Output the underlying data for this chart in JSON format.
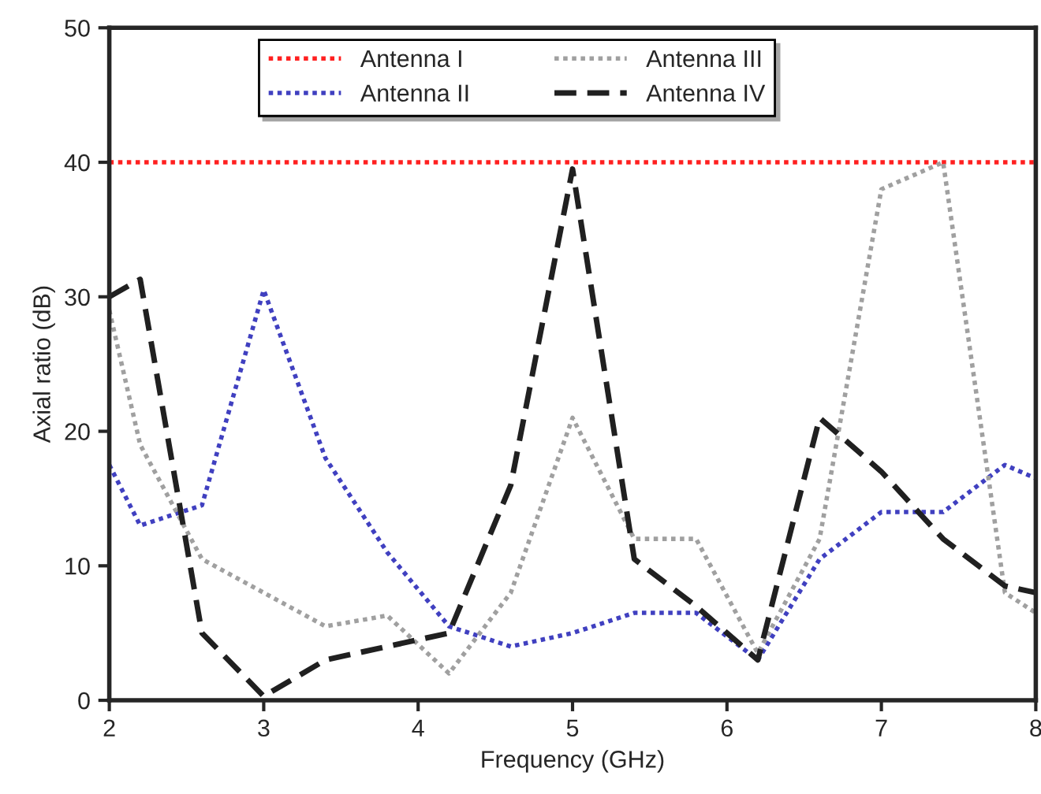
{
  "chart_data": {
    "type": "line",
    "xlabel": "Frequency (GHz)",
    "ylabel": "Axial ratio (dB)",
    "xlim": [
      2,
      8
    ],
    "xticks": [
      2,
      3,
      4,
      5,
      6,
      7,
      8
    ],
    "ylim": [
      0,
      50
    ],
    "yticks": [
      0,
      10,
      20,
      30,
      40,
      50
    ],
    "x": [
      2.0,
      2.2,
      2.6,
      3.0,
      3.4,
      3.8,
      4.2,
      4.6,
      5.0,
      5.4,
      5.8,
      6.2,
      6.6,
      7.0,
      7.4,
      7.8,
      8.0
    ],
    "series": [
      {
        "name": "Antenna I",
        "color": "#ff2020",
        "line_style": "dotted",
        "values": [
          40,
          40,
          40,
          40,
          40,
          40,
          40,
          40,
          40,
          40,
          40,
          40,
          40,
          40,
          40,
          40,
          40
        ]
      },
      {
        "name": "Antenna II",
        "color": "#4040c0",
        "line_style": "dotted",
        "values": [
          17.5,
          13,
          14.5,
          30.5,
          18,
          11,
          5.5,
          4,
          5,
          6.5,
          6.5,
          3,
          10.5,
          14,
          14,
          17.5,
          16.5
        ]
      },
      {
        "name": "Antenna III",
        "color": "#a0a0a0",
        "line_style": "dotted",
        "values": [
          29,
          19,
          10.5,
          8,
          5.5,
          6.3,
          2,
          8,
          21,
          12,
          12,
          3.5,
          12,
          38,
          40,
          8,
          6.5
        ]
      },
      {
        "name": "Antenna IV",
        "color": "#202020",
        "line_style": "dashed",
        "values": [
          30,
          31.3,
          5,
          0.3,
          3,
          4,
          5,
          16,
          39.5,
          10.5,
          7,
          3,
          21,
          17,
          12,
          8.5,
          8
        ]
      }
    ],
    "legend": "top",
    "grid": false,
    "marker": "none"
  }
}
